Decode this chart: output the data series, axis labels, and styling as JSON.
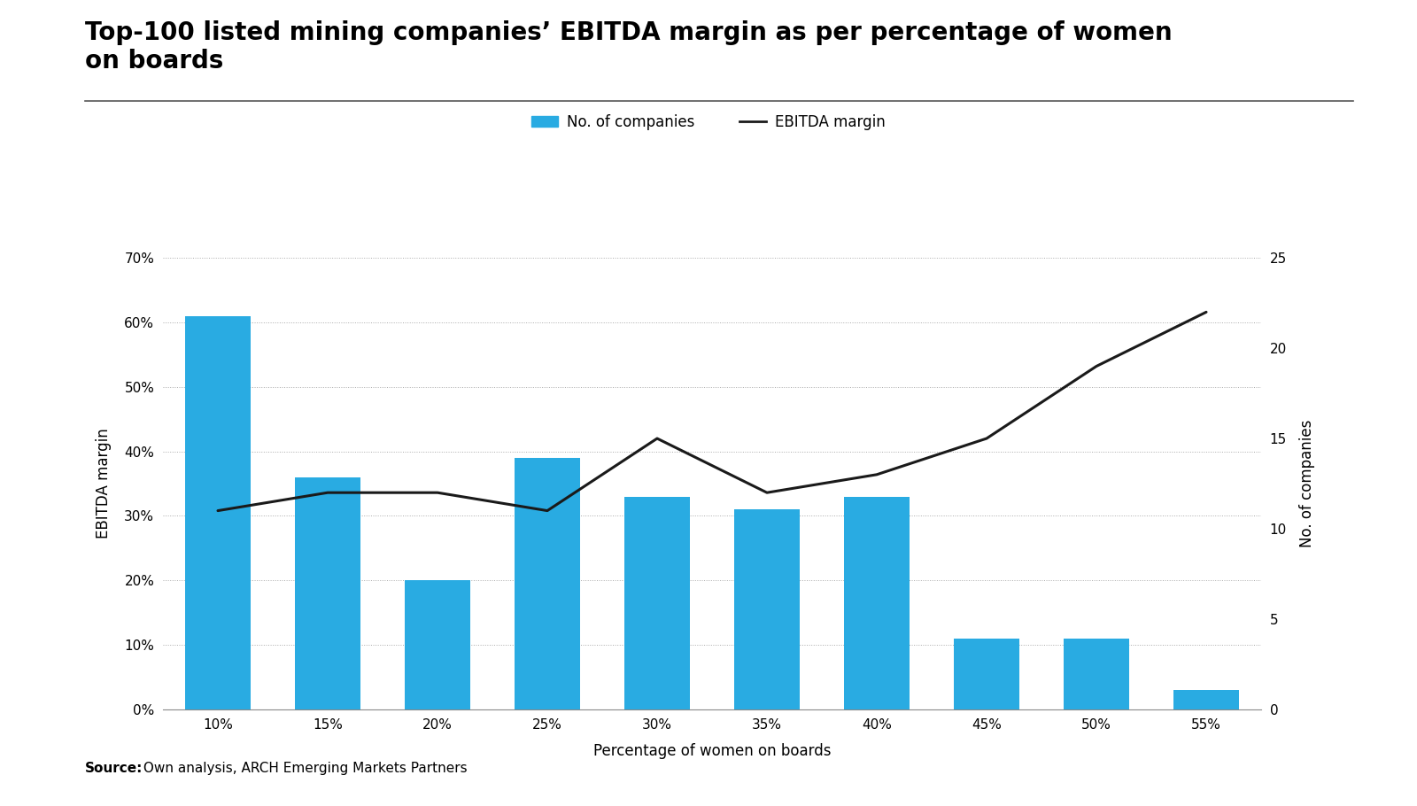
{
  "categories": [
    "10%",
    "15%",
    "20%",
    "25%",
    "30%",
    "35%",
    "40%",
    "45%",
    "50%",
    "55%"
  ],
  "ebitda_margin": [
    0.61,
    0.36,
    0.2,
    0.39,
    0.33,
    0.31,
    0.33,
    0.11,
    0.11,
    0.03
  ],
  "num_companies": [
    11,
    12,
    12,
    11,
    15,
    12,
    13,
    15,
    19,
    22
  ],
  "bar_color": "#29ABE2",
  "line_color": "#1a1a1a",
  "title_line1": "Top-100 listed mining companies’ EBITDA margin as per percentage of women",
  "title_line2": "on boards",
  "xlabel": "Percentage of women on boards",
  "ylabel_left": "EBITDA margin",
  "ylabel_right": "No. of companies",
  "ylim_left": [
    0.0,
    0.7
  ],
  "ylim_right": [
    0,
    25
  ],
  "yticks_left": [
    0.0,
    0.1,
    0.2,
    0.3,
    0.4,
    0.5,
    0.6,
    0.7
  ],
  "ytick_labels_left": [
    "0%",
    "10%",
    "20%",
    "30%",
    "40%",
    "50%",
    "60%",
    "70%"
  ],
  "yticks_right": [
    0,
    5,
    10,
    15,
    20,
    25
  ],
  "legend_bar_label": "No. of companies",
  "legend_line_label": "EBITDA margin",
  "source_bold": "Source:",
  "source_rest": " Own analysis, ARCH Emerging Markets Partners",
  "title_fontsize": 20,
  "axis_label_fontsize": 12,
  "tick_fontsize": 11,
  "legend_fontsize": 12,
  "source_fontsize": 11,
  "background_color": "#ffffff",
  "grid_color": "#aaaaaa",
  "title_line_color": "#555555"
}
